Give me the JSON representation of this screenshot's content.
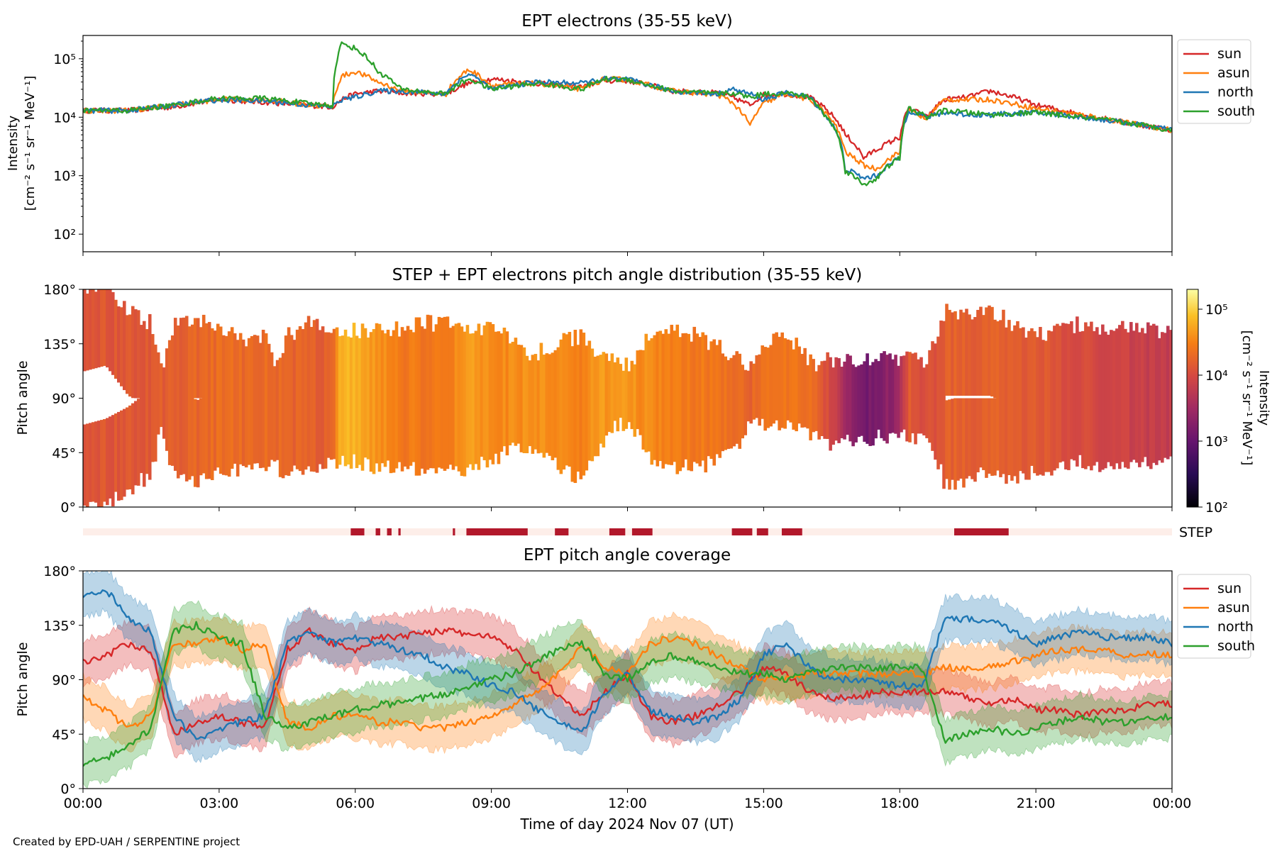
{
  "figure": {
    "credit": "Created by EPD-UAH / SERPENTINE project",
    "xlabel": "Time of day 2024 Nov 07 (UT)",
    "x_ticks": [
      "00:00",
      "03:00",
      "06:00",
      "09:00",
      "12:00",
      "15:00",
      "18:00",
      "21:00",
      "00:00"
    ]
  },
  "chart_data": [
    {
      "type": "line",
      "title": "EPT electrons (35-55 keV)",
      "ylabel_line1": "Intensity",
      "ylabel_line2": "[cm⁻² s⁻¹ sr⁻¹ MeV⁻¹]",
      "yscale": "log",
      "ylim": [
        50,
        250000
      ],
      "y_ticks": [
        "10²",
        "10³",
        "10⁴",
        "10⁵"
      ],
      "y_tick_values": [
        100,
        1000,
        10000,
        100000
      ],
      "xlim_hours": [
        0,
        24
      ],
      "legend": "outside-right",
      "x": [
        0,
        1,
        2,
        3,
        4,
        5,
        5.5,
        5.7,
        6,
        6.5,
        7,
        8,
        8.5,
        9,
        10,
        11,
        11.5,
        12,
        12.5,
        13,
        14,
        14.3,
        14.7,
        15,
        15.5,
        16,
        16.3,
        16.8,
        17.2,
        17.5,
        18,
        18.2,
        18.6,
        19,
        19.5,
        20,
        21,
        22,
        23,
        24
      ],
      "series": [
        {
          "name": "sun",
          "color": "#d62728",
          "values": [
            13000,
            13000,
            15000,
            20000,
            18000,
            16000,
            15000,
            20000,
            25000,
            28000,
            26000,
            25000,
            38000,
            45000,
            38000,
            33000,
            42000,
            42000,
            35000,
            28000,
            26000,
            22000,
            16000,
            24000,
            25000,
            22000,
            15000,
            5000,
            2000,
            2800,
            4500,
            14000,
            10000,
            20000,
            22000,
            28000,
            16000,
            11000,
            8000,
            6000
          ]
        },
        {
          "name": "asun",
          "color": "#ff7f0e",
          "values": [
            13000,
            13000,
            16000,
            20000,
            20000,
            16000,
            15000,
            50000,
            60000,
            40000,
            28000,
            25000,
            65000,
            35000,
            38000,
            30000,
            45000,
            44000,
            35000,
            28000,
            24000,
            18000,
            7000,
            17000,
            25000,
            20000,
            13000,
            2500,
            1500,
            1300,
            2500,
            13000,
            9000,
            20000,
            20000,
            20000,
            14000,
            11000,
            8000,
            6000
          ]
        },
        {
          "name": "north",
          "color": "#1f77b4",
          "values": [
            13000,
            13000,
            16000,
            20000,
            19000,
            16000,
            15000,
            20000,
            22000,
            28000,
            28000,
            25000,
            55000,
            30000,
            40000,
            38000,
            45000,
            44000,
            35000,
            28000,
            25000,
            30000,
            25000,
            20000,
            26000,
            22000,
            12000,
            1300,
            900,
            1000,
            2000,
            13000,
            10000,
            12000,
            11000,
            11000,
            12000,
            10000,
            8000,
            6000
          ]
        },
        {
          "name": "south",
          "color": "#2ca02c",
          "values": [
            13000,
            13000,
            16000,
            21000,
            21000,
            17000,
            16000,
            180000,
            150000,
            60000,
            30000,
            25000,
            45000,
            30000,
            38000,
            30000,
            45000,
            44000,
            35000,
            28000,
            25000,
            26000,
            22000,
            25000,
            26000,
            22000,
            12000,
            1200,
            700,
            900,
            2000,
            14000,
            10000,
            13000,
            12000,
            11000,
            12000,
            10000,
            8000,
            6000
          ]
        }
      ]
    },
    {
      "type": "heatmap",
      "title": "STEP + EPT electrons pitch angle distribution (35-55 keV)",
      "ylabel": "Pitch angle",
      "ylim": [
        0,
        180
      ],
      "y_ticks": [
        "0°",
        "45°",
        "90°",
        "135°",
        "180°"
      ],
      "y_tick_values": [
        0,
        45,
        90,
        135,
        180
      ],
      "colorbar": {
        "label_line1": "Intensity",
        "label_line2": "[cm⁻² s⁻¹ sr⁻¹ MeV⁻¹]",
        "scale": "log",
        "range": [
          100,
          200000
        ],
        "ticks": [
          "10²",
          "10³",
          "10⁴",
          "10⁵"
        ],
        "colormap": "inferno"
      }
    },
    {
      "type": "bar",
      "label": "STEP",
      "color": "#b2182b",
      "background": "#fdeee9",
      "intervals_hours": [
        [
          5.9,
          6.2
        ],
        [
          6.45,
          6.55
        ],
        [
          6.7,
          6.8
        ],
        [
          6.95,
          7.0
        ],
        [
          8.15,
          8.2
        ],
        [
          8.45,
          9.8
        ],
        [
          10.4,
          10.7
        ],
        [
          11.6,
          11.95
        ],
        [
          12.1,
          12.55
        ],
        [
          14.3,
          14.75
        ],
        [
          14.85,
          15.1
        ],
        [
          15.4,
          15.85
        ],
        [
          19.2,
          20.4
        ]
      ]
    },
    {
      "type": "line",
      "title": "EPT pitch angle coverage",
      "ylabel": "Pitch angle",
      "ylim": [
        0,
        180
      ],
      "y_ticks": [
        "0°",
        "45°",
        "90°",
        "135°",
        "180°"
      ],
      "y_tick_values": [
        0,
        45,
        90,
        135,
        180
      ],
      "legend": "outside-right",
      "x": [
        0,
        0.5,
        1,
        1.5,
        2,
        2.5,
        3,
        3.5,
        4,
        4.5,
        5,
        5.5,
        6,
        6.5,
        7,
        7.5,
        8,
        8.5,
        9,
        9.5,
        10,
        10.5,
        11,
        11.5,
        12,
        12.5,
        13,
        13.5,
        14,
        14.5,
        15,
        15.5,
        16,
        16.5,
        17,
        17.5,
        18,
        18.5,
        19,
        19.5,
        20,
        20.5,
        21,
        21.5,
        22,
        22.5,
        23,
        23.5,
        24
      ],
      "series": [
        {
          "name": "sun",
          "color": "#d62728",
          "values": [
            105,
            110,
            120,
            115,
            45,
            55,
            60,
            55,
            50,
            115,
            130,
            120,
            115,
            125,
            125,
            130,
            130,
            128,
            125,
            115,
            95,
            75,
            60,
            80,
            95,
            60,
            55,
            60,
            70,
            80,
            100,
            95,
            80,
            75,
            75,
            80,
            80,
            80,
            80,
            75,
            70,
            75,
            65,
            65,
            60,
            65,
            65,
            70,
            70
          ]
        },
        {
          "name": "asun",
          "color": "#ff7f0e",
          "values": [
            75,
            65,
            50,
            60,
            120,
            120,
            125,
            115,
            120,
            55,
            50,
            60,
            60,
            55,
            55,
            50,
            50,
            55,
            60,
            70,
            80,
            95,
            120,
            100,
            95,
            120,
            125,
            120,
            110,
            100,
            90,
            90,
            95,
            95,
            95,
            95,
            95,
            95,
            100,
            100,
            100,
            105,
            110,
            115,
            115,
            115,
            110,
            112,
            110
          ]
        },
        {
          "name": "north",
          "color": "#1f77b4",
          "values": [
            160,
            165,
            140,
            130,
            60,
            40,
            50,
            55,
            60,
            120,
            130,
            120,
            125,
            120,
            115,
            110,
            100,
            95,
            85,
            80,
            65,
            55,
            45,
            80,
            95,
            65,
            60,
            55,
            60,
            75,
            110,
            120,
            100,
            90,
            90,
            88,
            85,
            85,
            140,
            140,
            140,
            130,
            120,
            125,
            130,
            125,
            125,
            125,
            120
          ]
        },
        {
          "name": "south",
          "color": "#2ca02c",
          "values": [
            20,
            25,
            35,
            50,
            130,
            135,
            125,
            120,
            60,
            50,
            55,
            60,
            65,
            70,
            70,
            75,
            78,
            85,
            90,
            95,
            105,
            115,
            120,
            95,
            90,
            105,
            110,
            105,
            100,
            95,
            95,
            90,
            95,
            100,
            100,
            100,
            100,
            100,
            40,
            45,
            50,
            45,
            50,
            55,
            60,
            55,
            55,
            58,
            60
          ]
        }
      ]
    }
  ]
}
